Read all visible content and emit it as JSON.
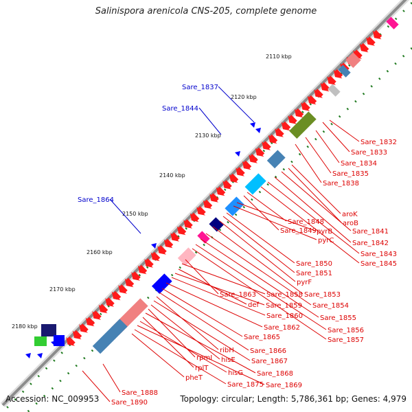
{
  "title": "Salinispora arenicola CNS-205, complete genome",
  "accession_text": "Accession: NC_009953",
  "summary_text": "Topology: circular; Length: 5,786,361 bp; Genes: 4,979",
  "colors": {
    "backbone": "#8c8c8c",
    "gene_label_forward": "#0000cc",
    "gene_label_reverse": "#dd0000",
    "tick_dots": "#1f7a1f",
    "cds_reverse": "#ff1a1a",
    "cds_forward": "#0000ff"
  },
  "ticks": [
    "2110 kbp",
    "2120 kbp",
    "2130 kbp",
    "2140 kbp",
    "2150 kbp",
    "2160 kbp",
    "2170 kbp",
    "2180 kbp"
  ],
  "forward_labels": [
    "Sare_1837",
    "Sare_1844",
    "Sare_1864"
  ],
  "reverse_labels": [
    "Sare_1832",
    "Sare_1833",
    "Sare_1834",
    "Sare_1835",
    "Sare_1838",
    "aroK",
    "aroB",
    "Sare_1841",
    "Sare_1842",
    "Sare_1843",
    "Sare_1845",
    "Sare_1848",
    "Sare_1849",
    "pyrB",
    "pyrC",
    "Sare_1850",
    "Sare_1851",
    "pyrF",
    "Sare_1853",
    "Sare_1854",
    "Sare_1855",
    "Sare_1856",
    "Sare_1857",
    "Sare_1863",
    "Sare_1858",
    "def",
    "Sare_1859",
    "Sare_1860",
    "Sare_1862",
    "Sare_1865",
    "Sare_1866",
    "ribH",
    "Sare_1867",
    "hisE",
    "rpmI",
    "Sare_1868",
    "rplT",
    "hisG",
    "Sare_1869",
    "Sare_1875",
    "pheT",
    "Sare_1888",
    "Sare_1890"
  ]
}
